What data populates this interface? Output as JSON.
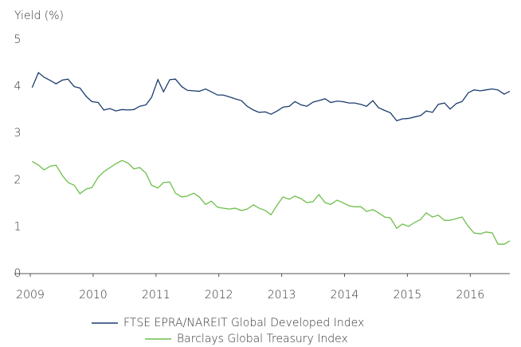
{
  "chart_data": {
    "type": "line",
    "ylabel": "Yield (%)",
    "xlim": [
      2009,
      2016.63
    ],
    "xticks": [
      2009,
      2010,
      2011,
      2012,
      2013,
      2014,
      2015,
      2016
    ],
    "ylim": [
      0,
      5
    ],
    "yticks": [
      0,
      1,
      2,
      3,
      4,
      5
    ],
    "grid": false,
    "legend": "bottom",
    "x": [
      2009.03,
      2009.13,
      2009.22,
      2009.32,
      2009.41,
      2009.51,
      2009.6,
      2009.7,
      2009.79,
      2009.89,
      2009.98,
      2010.08,
      2010.17,
      2010.27,
      2010.36,
      2010.46,
      2010.55,
      2010.65,
      2010.74,
      2010.84,
      2010.93,
      2011.03,
      2011.12,
      2011.22,
      2011.31,
      2011.41,
      2011.5,
      2011.6,
      2011.69,
      2011.79,
      2011.88,
      2011.98,
      2012.07,
      2012.17,
      2012.26,
      2012.36,
      2012.45,
      2012.55,
      2012.64,
      2012.74,
      2012.83,
      2012.93,
      2013.02,
      2013.12,
      2013.21,
      2013.31,
      2013.4,
      2013.5,
      2013.59,
      2013.69,
      2013.78,
      2013.88,
      2013.97,
      2014.07,
      2014.16,
      2014.26,
      2014.35,
      2014.45,
      2014.54,
      2014.64,
      2014.73,
      2014.83,
      2014.92,
      2015.02,
      2015.11,
      2015.21,
      2015.3,
      2015.4,
      2015.49,
      2015.59,
      2015.68,
      2015.78,
      2015.87,
      2015.97,
      2016.06,
      2016.16,
      2016.25,
      2016.35,
      2016.44,
      2016.54,
      2016.63
    ],
    "series": [
      {
        "name": "FTSE EPRA/NAREIT Global Developed Index",
        "color": "#1b3c6e",
        "values": [
          3.98,
          4.3,
          4.2,
          4.13,
          4.06,
          4.14,
          4.16,
          4.0,
          3.97,
          3.79,
          3.68,
          3.66,
          3.5,
          3.53,
          3.48,
          3.51,
          3.5,
          3.51,
          3.58,
          3.61,
          3.77,
          4.15,
          3.89,
          4.15,
          4.16,
          4.0,
          3.92,
          3.91,
          3.9,
          3.95,
          3.89,
          3.82,
          3.82,
          3.78,
          3.74,
          3.7,
          3.58,
          3.5,
          3.45,
          3.46,
          3.41,
          3.48,
          3.56,
          3.58,
          3.68,
          3.61,
          3.58,
          3.67,
          3.7,
          3.74,
          3.66,
          3.69,
          3.68,
          3.65,
          3.65,
          3.62,
          3.58,
          3.7,
          3.55,
          3.49,
          3.44,
          3.27,
          3.31,
          3.32,
          3.35,
          3.38,
          3.48,
          3.45,
          3.62,
          3.65,
          3.52,
          3.64,
          3.68,
          3.87,
          3.93,
          3.91,
          3.93,
          3.95,
          3.93,
          3.84,
          3.9
        ]
      },
      {
        "name": "Barclays Global Treasury Index",
        "color": "#6dbf4b",
        "values": [
          2.4,
          2.32,
          2.22,
          2.3,
          2.32,
          2.1,
          1.95,
          1.89,
          1.71,
          1.81,
          1.84,
          2.06,
          2.18,
          2.27,
          2.35,
          2.42,
          2.37,
          2.24,
          2.27,
          2.15,
          1.89,
          1.83,
          1.95,
          1.96,
          1.72,
          1.64,
          1.66,
          1.72,
          1.64,
          1.48,
          1.55,
          1.42,
          1.4,
          1.38,
          1.4,
          1.35,
          1.38,
          1.47,
          1.4,
          1.35,
          1.26,
          1.47,
          1.64,
          1.59,
          1.66,
          1.6,
          1.52,
          1.54,
          1.69,
          1.52,
          1.48,
          1.57,
          1.52,
          1.45,
          1.43,
          1.43,
          1.33,
          1.37,
          1.3,
          1.21,
          1.19,
          0.97,
          1.06,
          1.01,
          1.09,
          1.16,
          1.3,
          1.21,
          1.25,
          1.14,
          1.14,
          1.18,
          1.21,
          1.01,
          0.87,
          0.85,
          0.89,
          0.87,
          0.63,
          0.63,
          0.7
        ]
      }
    ]
  }
}
